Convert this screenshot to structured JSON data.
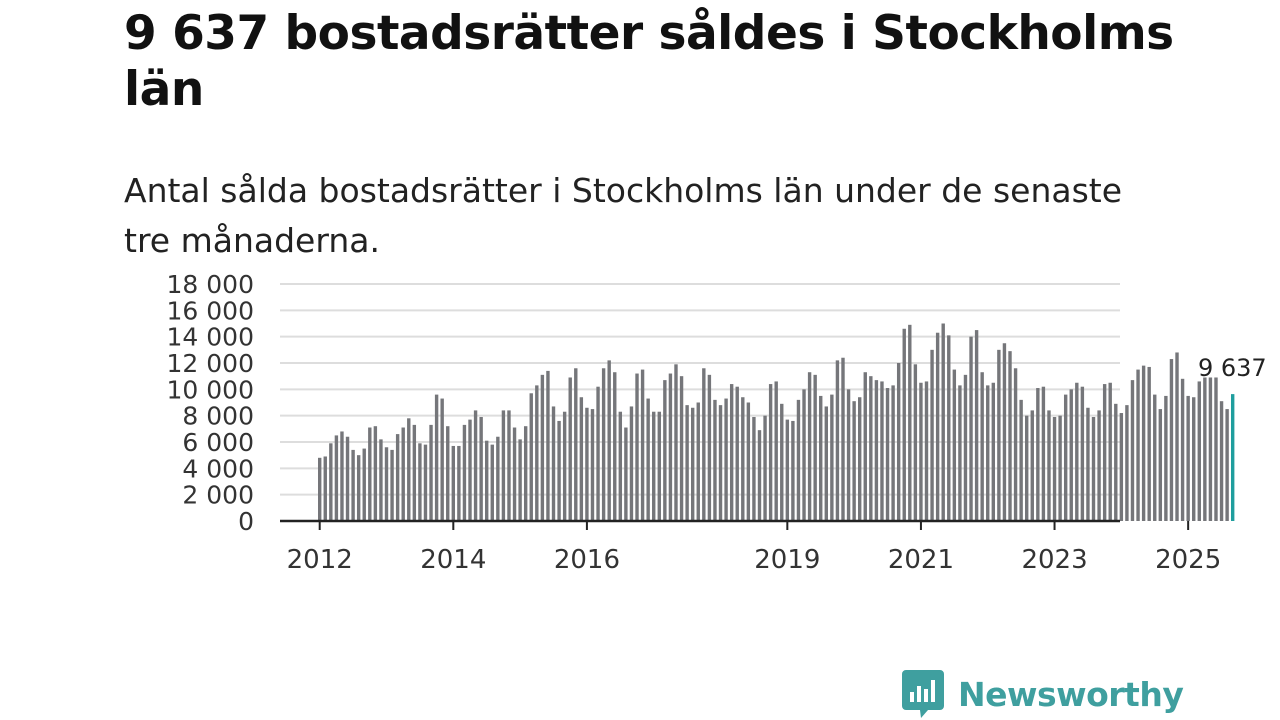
{
  "title": "9 637 bostadsrätter såldes i Stockholms län",
  "subtitle": "Antal sålda bostadsrätter i Stockholms län under de senaste tre månaderna.",
  "brand": {
    "name": "Newsworthy",
    "color": "#3f9f9f",
    "icon": "newsworthy-chart-bubble-icon"
  },
  "colors": {
    "bar": "#75767a",
    "highlight": "#1f9e9e",
    "grid": "#dddddd",
    "axis": "#222222"
  },
  "chart_data": {
    "type": "bar",
    "title": "9 637 bostadsrätter såldes i Stockholms län",
    "xlabel": "",
    "ylabel": "",
    "ylim": [
      0,
      18000
    ],
    "yticks": [
      0,
      2000,
      4000,
      6000,
      8000,
      10000,
      12000,
      14000,
      16000,
      18000
    ],
    "ytick_labels": [
      "0",
      "2 000",
      "4 000",
      "6 000",
      "8 000",
      "10 000",
      "12 000",
      "14 000",
      "16 000",
      "18 000"
    ],
    "xtick_labels": [
      {
        "label": "2012",
        "index": 0
      },
      {
        "label": "2014",
        "index": 24
      },
      {
        "label": "2016",
        "index": 48
      },
      {
        "label": "2019",
        "index": 84
      },
      {
        "label": "2021",
        "index": 108
      },
      {
        "label": "2023",
        "index": 132
      },
      {
        "label": "2025",
        "index": 156
      }
    ],
    "period": "rolling 3-month totals, monthly, Jan 2012 – Jul 2025",
    "values": [
      4800,
      4900,
      5900,
      6500,
      6800,
      6400,
      5400,
      5000,
      5500,
      7100,
      7200,
      6200,
      5600,
      5400,
      6600,
      7100,
      7800,
      7300,
      5900,
      5800,
      7300,
      9600,
      9300,
      7200,
      5700,
      5700,
      7300,
      7700,
      8400,
      7900,
      6100,
      5800,
      6400,
      8400,
      8400,
      7100,
      6200,
      7200,
      9700,
      10300,
      11100,
      11400,
      8700,
      7600,
      8300,
      10900,
      11600,
      9400,
      8600,
      8500,
      10200,
      11600,
      12200,
      11300,
      8300,
      7100,
      8700,
      11200,
      11500,
      9300,
      8300,
      8300,
      10700,
      11200,
      11900,
      11000,
      8800,
      8600,
      9000,
      11600,
      11100,
      9200,
      8800,
      9300,
      10400,
      10200,
      9400,
      9000,
      7900,
      6900,
      8000,
      10400,
      10600,
      8900,
      7700,
      7600,
      9200,
      10000,
      11300,
      11100,
      9500,
      8700,
      9600,
      12200,
      12400,
      10000,
      9100,
      9400,
      11300,
      11000,
      10700,
      10600,
      10100,
      10300,
      12000,
      14600,
      14900,
      11900,
      10500,
      10600,
      13000,
      14300,
      15000,
      14100,
      11500,
      10300,
      11100,
      14000,
      14500,
      11300,
      10300,
      10500,
      13000,
      13500,
      12900,
      11600,
      9200,
      8000,
      8400,
      10100,
      10200,
      8400,
      7900,
      8000,
      9600,
      10000,
      10500,
      10200,
      8600,
      7900,
      8400,
      10400,
      10500,
      8900,
      8200,
      8800,
      10700,
      11500,
      11800,
      11700,
      9600,
      8500,
      9500,
      12300,
      12800,
      10800,
      9500,
      9400,
      10600,
      10900,
      10900,
      10900,
      9100,
      8500,
      9637
    ],
    "last_value": 9637,
    "last_value_label": "9 637"
  }
}
